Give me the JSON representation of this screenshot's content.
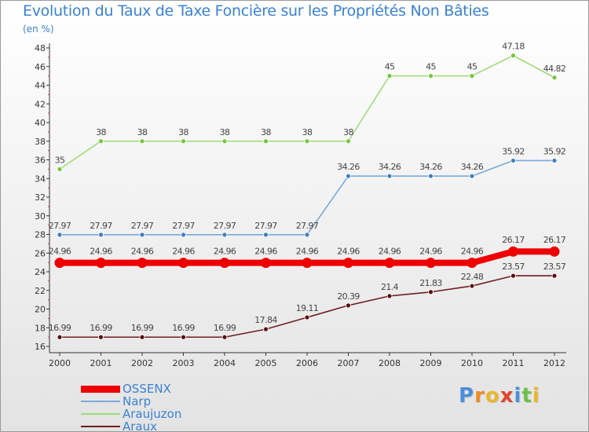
{
  "header": {
    "title": "Evolution du Taux de Taxe Foncière sur les Propriétés Non Bâties",
    "unit": "(en %)"
  },
  "logo": {
    "letters": [
      "P",
      "r",
      "o",
      "x",
      "i",
      "t",
      "i"
    ],
    "colors": [
      "#4a8fd9",
      "#f08a24",
      "#e8b62a",
      "#e0452f",
      "#4a8fd9",
      "#6cc04a",
      "#e8b62a"
    ]
  },
  "chart_data": {
    "type": "line",
    "title": "Evolution du Taux de Taxe Foncière sur les Propriétés Non Bâties",
    "ylabel": "(en %)",
    "xlabel": "",
    "categories": [
      "2000",
      "2001",
      "2002",
      "2003",
      "2004",
      "2005",
      "2006",
      "2007",
      "2008",
      "2009",
      "2010",
      "2011",
      "2012"
    ],
    "ylim": [
      16,
      48
    ],
    "yticks": [
      16,
      18,
      20,
      22,
      24,
      26,
      28,
      30,
      32,
      34,
      36,
      38,
      40,
      42,
      44,
      46,
      48
    ],
    "grid": false,
    "series": [
      {
        "name": "OSSENX",
        "color": "#ee0000",
        "point_color": "#ee0000",
        "label_color": "#444444",
        "thick": true,
        "values": [
          24.96,
          24.96,
          24.96,
          24.96,
          24.96,
          24.96,
          24.96,
          24.96,
          24.96,
          24.96,
          24.96,
          26.17,
          26.17
        ],
        "labels": [
          "24.96",
          "24.96",
          "24.96",
          "24.96",
          "24.96",
          "24.96",
          "24.96",
          "24.96",
          "24.96",
          "24.96",
          "24.96",
          "26.17",
          "26.17"
        ]
      },
      {
        "name": "Narp",
        "color": "#7aaad6",
        "point_color": "#3f7fbf",
        "label_color": "#444444",
        "thick": false,
        "values": [
          27.97,
          27.97,
          27.97,
          27.97,
          27.97,
          27.97,
          27.97,
          34.26,
          34.26,
          34.26,
          34.26,
          35.92,
          35.92
        ],
        "labels": [
          "27.97",
          "27.97",
          "27.97",
          "27.97",
          "27.97",
          "27.97",
          "27.97",
          "34.26",
          "34.26",
          "34.26",
          "34.26",
          "35.92",
          "35.92"
        ]
      },
      {
        "name": "Araujuzon",
        "color": "#9edc78",
        "point_color": "#77c43d",
        "label_color": "#444444",
        "thick": false,
        "values": [
          35,
          38,
          38,
          38,
          38,
          38,
          38,
          38,
          45,
          45,
          45,
          47.18,
          44.82
        ],
        "labels": [
          "35",
          "38",
          "38",
          "38",
          "38",
          "38",
          "38",
          "38",
          "45",
          "45",
          "45",
          "47.18",
          "44.82"
        ]
      },
      {
        "name": "Araux",
        "color": "#6e1f1f",
        "point_color": "#5a1010",
        "label_color": "#444444",
        "thick": false,
        "values": [
          16.99,
          16.99,
          16.99,
          16.99,
          16.99,
          17.84,
          19.11,
          20.39,
          21.4,
          21.83,
          22.48,
          23.57,
          23.57
        ],
        "labels": [
          "16.99",
          "16.99",
          "16.99",
          "16.99",
          "16.99",
          "17.84",
          "19.11",
          "20.39",
          "21.4",
          "21.83",
          "22.48",
          "23.57",
          "23.57"
        ]
      }
    ],
    "legend_position": "bottom-left"
  }
}
